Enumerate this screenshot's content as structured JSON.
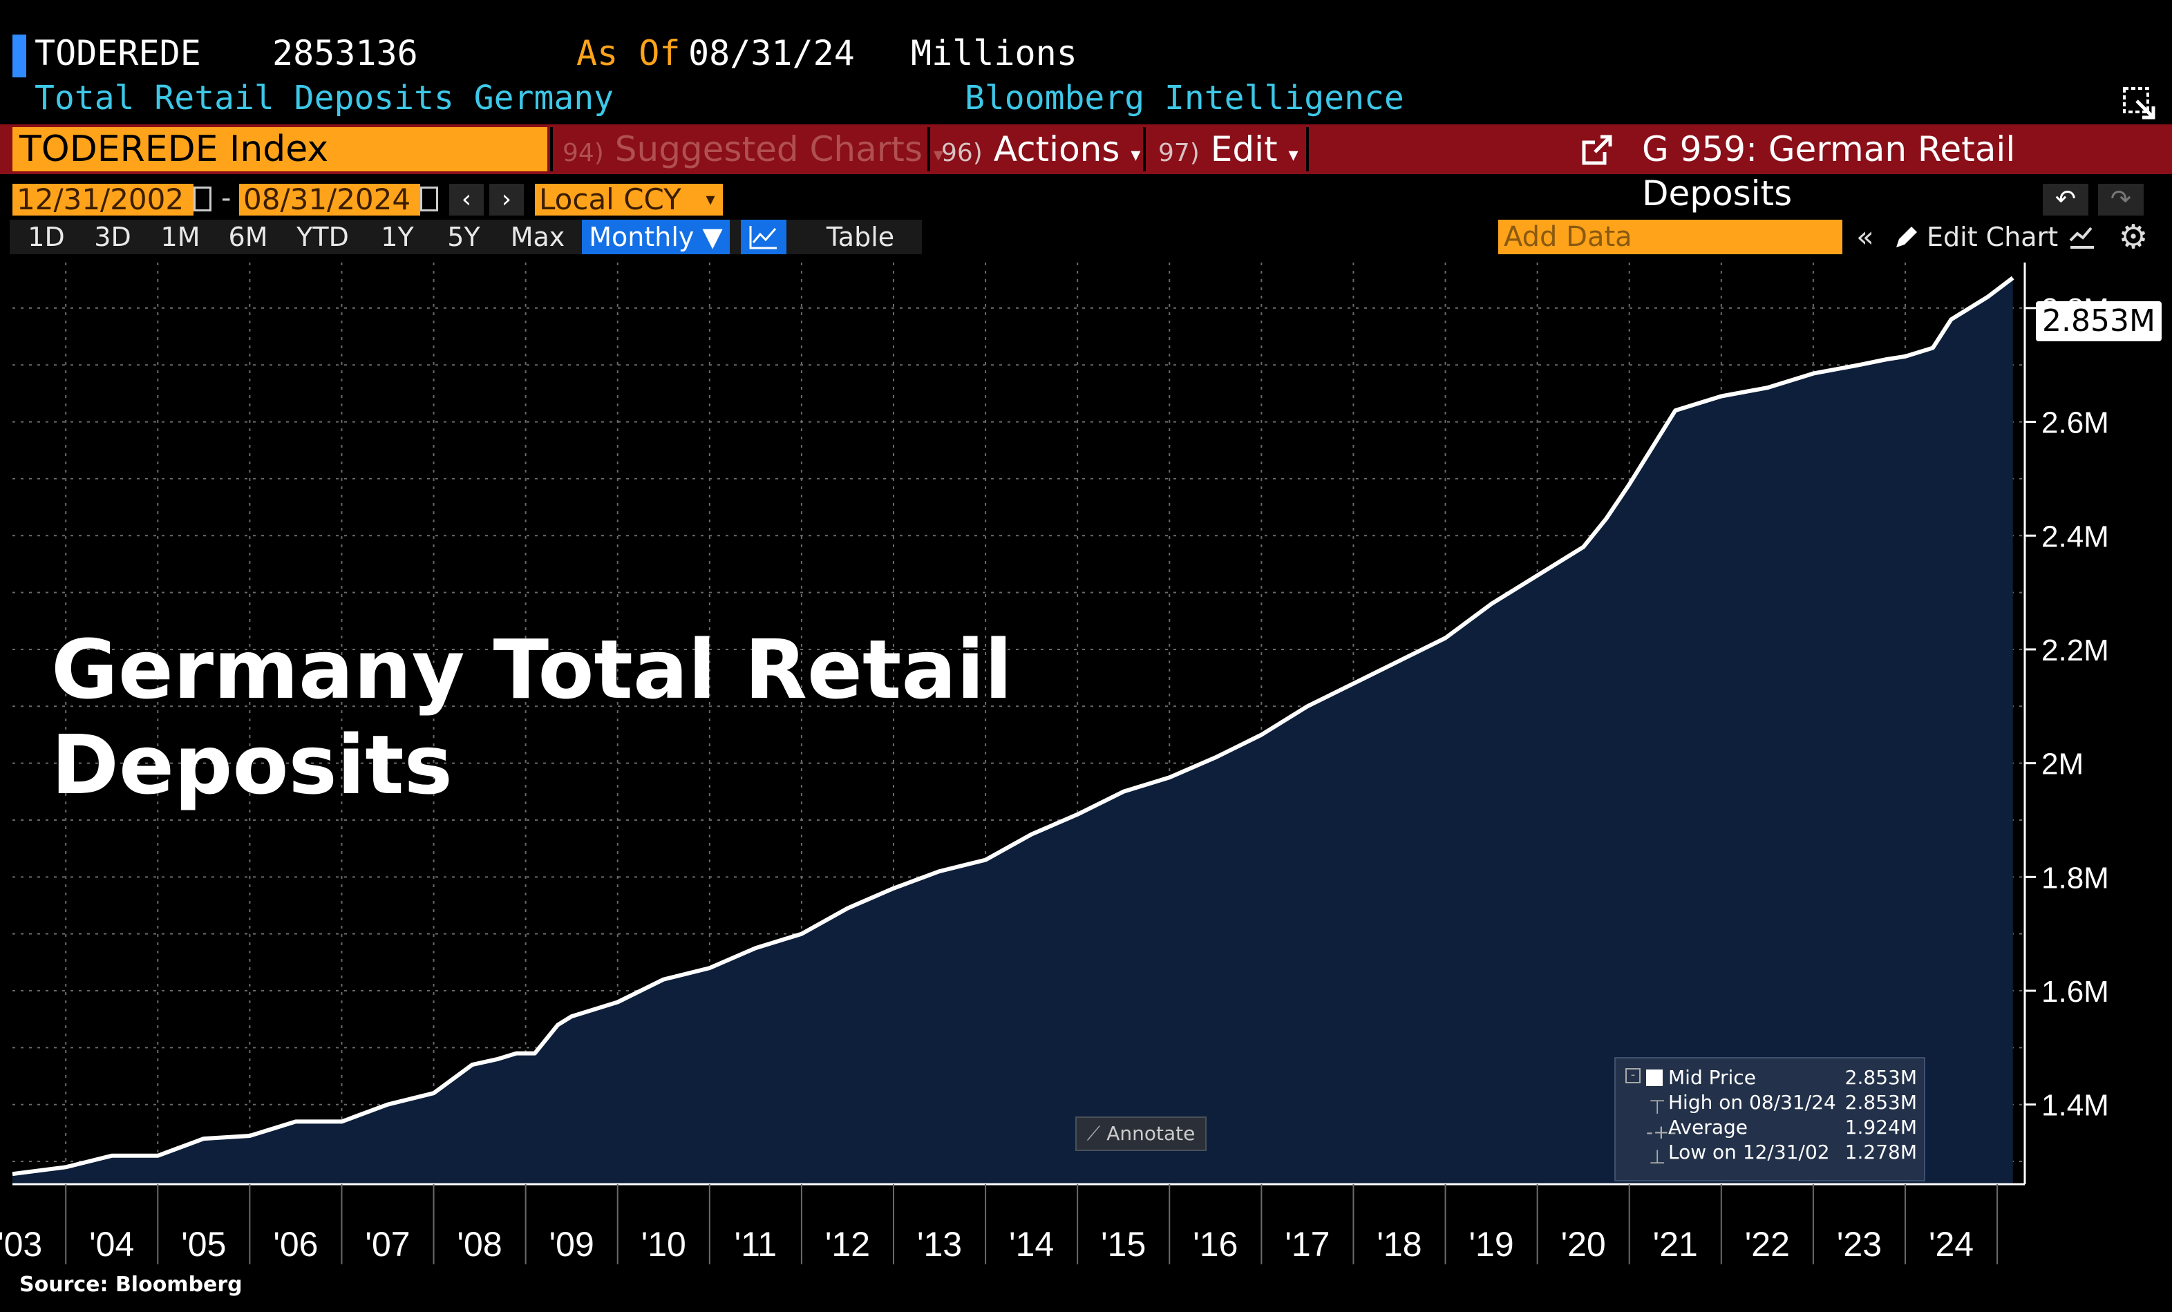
{
  "header": {
    "ticker": "TODEREDE",
    "value": "2853136",
    "as_of_label": "As Of",
    "as_of_date": "08/31/24",
    "units": "Millions",
    "description": "Total Retail Deposits Germany",
    "provider": "Bloomberg Intelligence"
  },
  "toolbar": {
    "index": "TODEREDE Index",
    "suggested_num": "94)",
    "suggested": "Suggested Charts",
    "actions_num": "96)",
    "actions": "Actions",
    "edit_num": "97)",
    "edit": "Edit",
    "chart_name": "G 959: German Retail Deposits"
  },
  "range": {
    "start": "12/31/2002",
    "end": "08/31/2024",
    "currency": "Local CCY",
    "dash": "-"
  },
  "buttons": {
    "periods": [
      "1D",
      "3D",
      "1M",
      "6M",
      "YTD",
      "1Y",
      "5Y",
      "Max"
    ],
    "frequency": "Monthly ▼",
    "table": "Table",
    "add_data": "Add Data",
    "edit_chart": "Edit Chart"
  },
  "overlay_title": "Germany Total Retail Deposits",
  "source": "Source:  Bloomberg",
  "annotate": "Annotate",
  "last_value_label": "2.853M",
  "legend": {
    "rows": [
      {
        "label": "Mid Price",
        "value": "2.853M"
      },
      {
        "label": "High on 08/31/24",
        "value": "2.853M"
      },
      {
        "label": "Average",
        "value": "1.924M"
      },
      {
        "label": "Low on 12/31/02",
        "value": "1.278M"
      }
    ]
  },
  "colors": {
    "line": "#ffffff",
    "area": "#0d1f3a",
    "accent": "#ffa31a",
    "header_bar": "#8a0f18",
    "cyan": "#3dc8e8"
  },
  "chart_data": {
    "type": "area",
    "title": "Germany Total Retail Deposits",
    "ylabel": "",
    "xlabel": "",
    "ylim": [
      1.26,
      2.88
    ],
    "y_ticks": [
      1.4,
      1.6,
      1.8,
      2.0,
      2.2,
      2.4,
      2.6,
      2.8
    ],
    "y_tick_labels": [
      "1.4M",
      "1.6M",
      "1.8M",
      "2M",
      "2.2M",
      "2.4M",
      "2.6M",
      "2.8M"
    ],
    "x_range": [
      2002.92,
      2024.8
    ],
    "x_ticks": [
      2003,
      2004,
      2005,
      2006,
      2007,
      2008,
      2009,
      2010,
      2011,
      2012,
      2013,
      2014,
      2015,
      2016,
      2017,
      2018,
      2019,
      2020,
      2021,
      2022,
      2023,
      2024
    ],
    "x_tick_labels": [
      "'03",
      "'04",
      "'05",
      "'06",
      "'07",
      "'08",
      "'09",
      "'10",
      "'11",
      "'12",
      "'13",
      "'14",
      "'15",
      "'16",
      "'17",
      "'18",
      "'19",
      "'20",
      "'21",
      "'22",
      "'23",
      "'24"
    ],
    "series": [
      {
        "name": "Mid Price",
        "unit": "M EUR (millions)",
        "x": [
          2002.92,
          2003.5,
          2004.0,
          2004.5,
          2005.0,
          2005.5,
          2006.0,
          2006.5,
          2007.0,
          2007.5,
          2007.92,
          2008.2,
          2008.4,
          2008.6,
          2008.85,
          2009.0,
          2009.5,
          2010.0,
          2010.5,
          2011.0,
          2011.5,
          2012.0,
          2012.5,
          2013.0,
          2013.5,
          2014.0,
          2014.5,
          2015.0,
          2015.5,
          2016.0,
          2016.5,
          2017.0,
          2017.5,
          2018.0,
          2018.5,
          2019.0,
          2019.5,
          2020.0,
          2020.25,
          2020.5,
          2021.0,
          2021.5,
          2022.0,
          2022.5,
          2023.0,
          2023.3,
          2023.5,
          2023.8,
          2024.0,
          2024.4,
          2024.67
        ],
        "values": [
          1.278,
          1.29,
          1.31,
          1.31,
          1.34,
          1.345,
          1.37,
          1.37,
          1.4,
          1.42,
          1.47,
          1.48,
          1.49,
          1.49,
          1.54,
          1.555,
          1.58,
          1.62,
          1.64,
          1.675,
          1.7,
          1.745,
          1.78,
          1.81,
          1.83,
          1.875,
          1.91,
          1.95,
          1.975,
          2.01,
          2.05,
          2.1,
          2.14,
          2.18,
          2.22,
          2.28,
          2.33,
          2.38,
          2.43,
          2.49,
          2.62,
          2.645,
          2.66,
          2.685,
          2.7,
          2.71,
          2.715,
          2.73,
          2.78,
          2.82,
          2.853
        ]
      }
    ]
  }
}
